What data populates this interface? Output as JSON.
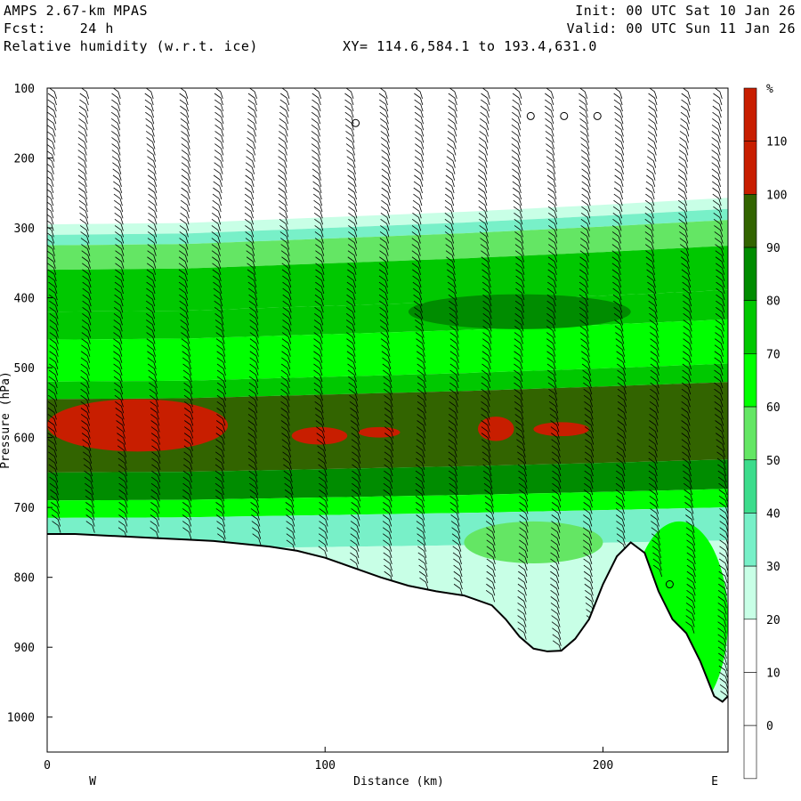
{
  "header": {
    "model": "AMPS 2.67-km MPAS",
    "forecast": "Fcst:    24 h",
    "field": "Relative humidity (w.r.t. ice)",
    "xy": "XY= 114.6,584.1 to 193.4,631.0",
    "init": "Init: 00 UTC Sat 10 Jan 26",
    "valid": "Valid: 00 UTC Sun 11 Jan 26"
  },
  "chart_data": {
    "type": "heatmap",
    "title": "Relative humidity (w.r.t. ice)",
    "xlabel": "Distance (km)",
    "ylabel": "Pressure (hPa)",
    "xlim": [
      0,
      245
    ],
    "ylim": [
      1050,
      100
    ],
    "x_ticks": [
      0,
      100,
      200
    ],
    "y_ticks": [
      100,
      200,
      300,
      400,
      500,
      600,
      700,
      800,
      900,
      1000
    ],
    "x_end_labels": {
      "left": "W",
      "right": "E"
    },
    "colorbar": {
      "unit": "%",
      "levels": [
        0,
        10,
        20,
        30,
        40,
        50,
        60,
        70,
        80,
        90,
        100,
        110
      ],
      "colors": [
        "#ffffff",
        "#ffffff",
        "#ffffff",
        "#c8ffe6",
        "#78f0c8",
        "#3cdc8c",
        "#64e664",
        "#00ff00",
        "#00c800",
        "#008c00",
        "#326400",
        "#c81e00"
      ]
    },
    "terrain": [
      [
        0,
        738
      ],
      [
        10,
        738
      ],
      [
        20,
        740
      ],
      [
        30,
        742
      ],
      [
        40,
        744
      ],
      [
        50,
        746
      ],
      [
        60,
        748
      ],
      [
        70,
        752
      ],
      [
        80,
        756
      ],
      [
        90,
        762
      ],
      [
        100,
        772
      ],
      [
        110,
        786
      ],
      [
        120,
        800
      ],
      [
        130,
        812
      ],
      [
        140,
        820
      ],
      [
        150,
        826
      ],
      [
        160,
        840
      ],
      [
        165,
        860
      ],
      [
        170,
        885
      ],
      [
        175,
        902
      ],
      [
        180,
        906
      ],
      [
        185,
        905
      ],
      [
        190,
        888
      ],
      [
        195,
        860
      ],
      [
        200,
        810
      ],
      [
        205,
        770
      ],
      [
        210,
        750
      ],
      [
        215,
        765
      ],
      [
        220,
        820
      ],
      [
        225,
        860
      ],
      [
        230,
        880
      ],
      [
        235,
        920
      ],
      [
        240,
        970
      ],
      [
        243,
        978
      ],
      [
        245,
        970
      ]
    ],
    "rh_bands": [
      {
        "top": 295,
        "bottom": 310,
        "rh": 35
      },
      {
        "top": 310,
        "bottom": 325,
        "rh": 45
      },
      {
        "top": 325,
        "bottom": 360,
        "rh": 65
      },
      {
        "top": 360,
        "bottom": 420,
        "rh": 85
      },
      {
        "top": 420,
        "bottom": 460,
        "rh": 80
      },
      {
        "top": 460,
        "bottom": 520,
        "rh": 75
      },
      {
        "top": 520,
        "bottom": 545,
        "rh": 80
      },
      {
        "top": 545,
        "bottom": 650,
        "rh": 105
      },
      {
        "top": 650,
        "bottom": 690,
        "rh": 95
      },
      {
        "top": 690,
        "bottom": 715,
        "rh": 70
      },
      {
        "top": 715,
        "bottom": 760,
        "rh": 45
      },
      {
        "top": 760,
        "bottom": 1000,
        "rh": 35
      }
    ],
    "rh_patches": [
      {
        "x0": 0,
        "x1": 65,
        "top": 545,
        "bottom": 620,
        "rh": 115
      },
      {
        "x0": 88,
        "x1": 108,
        "top": 585,
        "bottom": 610,
        "rh": 115
      },
      {
        "x0": 112,
        "x1": 127,
        "top": 585,
        "bottom": 600,
        "rh": 115
      },
      {
        "x0": 155,
        "x1": 168,
        "top": 570,
        "bottom": 605,
        "rh": 115
      },
      {
        "x0": 175,
        "x1": 195,
        "top": 578,
        "bottom": 598,
        "rh": 115
      },
      {
        "x0": 130,
        "x1": 210,
        "top": 395,
        "bottom": 445,
        "rh": 95
      },
      {
        "x0": 210,
        "x1": 245,
        "top": 720,
        "bottom": 1000,
        "rh": 75
      },
      {
        "x0": 150,
        "x1": 200,
        "top": 720,
        "bottom": 780,
        "rh": 65
      },
      {
        "x0": 160,
        "x1": 200,
        "top": 780,
        "bottom": 900,
        "rh": 35
      }
    ],
    "moist_top": [
      [
        0,
        300
      ],
      [
        50,
        298
      ],
      [
        100,
        290
      ],
      [
        150,
        282
      ],
      [
        200,
        272
      ],
      [
        245,
        262
      ]
    ],
    "barb_columns_km": [
      2,
      14,
      26,
      38,
      50,
      62,
      74,
      86,
      98,
      110,
      122,
      134,
      146,
      158,
      170,
      182,
      194,
      206,
      218,
      230,
      242
    ],
    "calm_markers": [
      [
        111,
        150
      ],
      [
        174,
        140
      ],
      [
        186,
        140
      ],
      [
        198,
        140
      ],
      [
        224,
        810
      ]
    ]
  }
}
